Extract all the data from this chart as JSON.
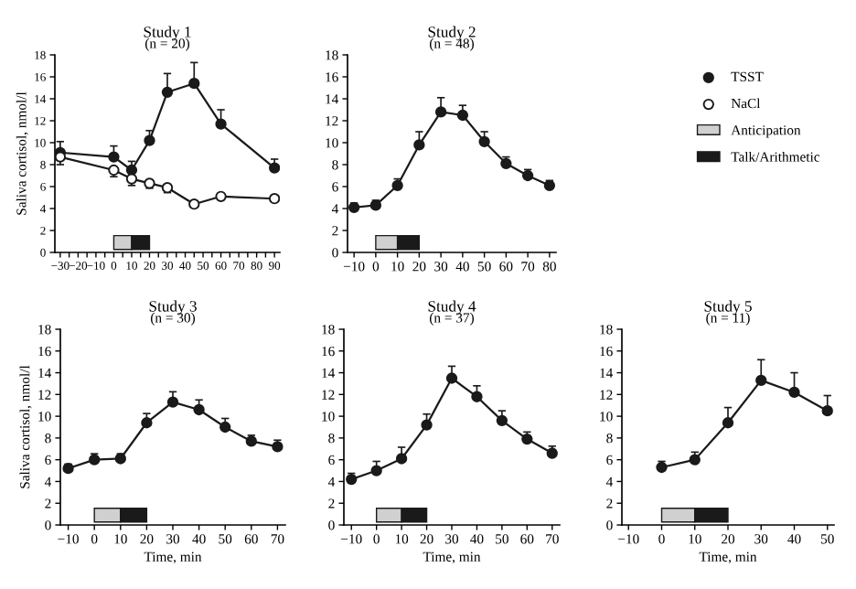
{
  "chart_data": [
    {
      "type": "line",
      "title": "Study 1",
      "subtitle": "(n = 20)",
      "ylabel": "Saliva cortisol, nmol/l",
      "xlim": [
        -33,
        93
      ],
      "ylim": [
        0,
        18
      ],
      "xticks": [
        -30,
        {
          "value": -25,
          "label": null
        },
        -20,
        {
          "value": -15,
          "label": null
        },
        -10,
        {
          "value": -5,
          "label": null
        },
        0,
        {
          "value": 5,
          "label": null
        },
        10,
        {
          "value": 15,
          "label": null
        },
        20,
        {
          "value": 25,
          "label": null
        },
        30,
        {
          "value": 35,
          "label": null
        },
        40,
        {
          "value": 45,
          "label": null
        },
        50,
        {
          "value": 55,
          "label": null
        },
        60,
        {
          "value": 65,
          "label": null
        },
        70,
        {
          "value": 75,
          "label": null
        },
        80,
        {
          "value": 85,
          "label": null
        },
        90
      ],
      "yticks": [
        0,
        2,
        4,
        6,
        8,
        10,
        12,
        14,
        16,
        18
      ],
      "legend": "right",
      "grid": false,
      "series": [
        {
          "name": "TSST",
          "color": "#1a1a1a",
          "marker": "circle",
          "x": [
            -30,
            0,
            10,
            20,
            30,
            45,
            60,
            90
          ],
          "values": [
            9.1,
            8.7,
            7.5,
            10.2,
            14.6,
            15.4,
            11.7,
            7.7
          ],
          "errors": [
            [
              9.1,
              10.1
            ],
            [
              8.7,
              9.7
            ],
            [
              7.5,
              8.3
            ],
            [
              10.2,
              11.1
            ],
            [
              14.6,
              16.3
            ],
            [
              15.4,
              17.3
            ],
            [
              11.7,
              13.0
            ],
            [
              7.7,
              8.5
            ]
          ]
        },
        {
          "name": "NaCl",
          "color": "#ffffff",
          "marker": "circle",
          "x": [
            -30,
            0,
            10,
            20,
            30,
            45,
            60,
            90
          ],
          "values": [
            8.7,
            7.5,
            6.7,
            6.3,
            5.9,
            4.4,
            5.1,
            4.9
          ],
          "errors": [
            [
              8.0,
              8.7
            ],
            [
              6.9,
              7.5
            ],
            [
              6.1,
              6.7
            ],
            [
              5.85,
              6.3
            ],
            [
              5.45,
              5.9
            ],
            [
              4.1,
              4.4
            ],
            [
              4.9,
              5.1
            ],
            [
              4.7,
              4.9
            ]
          ]
        }
      ],
      "bands": [
        {
          "axis": "x",
          "from": 0,
          "to": 10,
          "label": "Anticipation",
          "color": "#d0d0d0"
        },
        {
          "axis": "x",
          "from": 10,
          "to": 20,
          "label": "Talk/Arithmetic",
          "color": "#1a1a1a"
        }
      ]
    },
    {
      "type": "line",
      "title": "Study 2",
      "subtitle": "(n = 48)",
      "xlim": [
        -13,
        83
      ],
      "ylim": [
        0,
        18
      ],
      "xticks": [
        -10,
        0,
        10,
        20,
        30,
        40,
        50,
        60,
        70,
        80
      ],
      "yticks": [
        0,
        2,
        4,
        6,
        8,
        10,
        12,
        14,
        16,
        18
      ],
      "grid": false,
      "series": [
        {
          "color": "#1a1a1a",
          "marker": "circle",
          "x": [
            -10,
            0,
            10,
            20,
            30,
            40,
            50,
            60,
            70,
            80
          ],
          "values": [
            4.1,
            4.3,
            6.1,
            9.8,
            12.8,
            12.5,
            10.1,
            8.1,
            7.0,
            6.1
          ],
          "errors": [
            [
              4.1,
              4.5
            ],
            [
              4.3,
              4.75
            ],
            [
              6.1,
              6.7
            ],
            [
              9.8,
              11.0
            ],
            [
              12.8,
              14.1
            ],
            [
              12.5,
              13.4
            ],
            [
              10.1,
              11.0
            ],
            [
              8.1,
              8.7
            ],
            [
              7.0,
              7.55
            ],
            [
              6.1,
              6.55
            ]
          ]
        }
      ],
      "bands": [
        {
          "axis": "x",
          "from": 0,
          "to": 10,
          "color": "#d0d0d0"
        },
        {
          "axis": "x",
          "from": 10,
          "to": 20,
          "color": "#1a1a1a"
        }
      ]
    },
    {
      "type": "line",
      "title": "Study 3",
      "subtitle": "(n = 30)",
      "xlabel": "Time, min",
      "ylabel": "Saliva cortisol, nmol/l",
      "xlim": [
        -13,
        73
      ],
      "ylim": [
        0,
        18
      ],
      "xticks": [
        -10,
        0,
        10,
        20,
        30,
        40,
        50,
        60,
        70
      ],
      "yticks": [
        0,
        2,
        4,
        6,
        8,
        10,
        12,
        14,
        16,
        18
      ],
      "grid": false,
      "series": [
        {
          "color": "#1a1a1a",
          "marker": "circle",
          "x": [
            -10,
            0,
            10,
            20,
            30,
            40,
            50,
            60,
            70
          ],
          "values": [
            5.2,
            6.0,
            6.1,
            9.4,
            11.3,
            10.6,
            9.0,
            7.7,
            7.2
          ],
          "errors": [
            [
              5.2,
              5.6
            ],
            [
              6.0,
              6.55
            ],
            [
              6.1,
              6.55
            ],
            [
              9.4,
              10.25
            ],
            [
              11.3,
              12.25
            ],
            [
              10.6,
              11.5
            ],
            [
              9.0,
              9.8
            ],
            [
              7.7,
              8.25
            ],
            [
              7.2,
              7.8
            ]
          ]
        }
      ],
      "bands": [
        {
          "axis": "x",
          "from": 0,
          "to": 10,
          "color": "#d0d0d0"
        },
        {
          "axis": "x",
          "from": 10,
          "to": 20,
          "color": "#1a1a1a"
        }
      ]
    },
    {
      "type": "line",
      "title": "Study 4",
      "subtitle": "(n = 37)",
      "xlabel": "Time, min",
      "xlim": [
        -13,
        73
      ],
      "ylim": [
        0,
        18
      ],
      "xticks": [
        -10,
        0,
        10,
        20,
        30,
        40,
        50,
        60,
        70
      ],
      "yticks": [
        0,
        2,
        4,
        6,
        8,
        10,
        12,
        14,
        16,
        18
      ],
      "grid": false,
      "series": [
        {
          "color": "#1a1a1a",
          "marker": "circle",
          "x": [
            -10,
            0,
            10,
            20,
            30,
            40,
            50,
            60,
            70
          ],
          "values": [
            4.2,
            5.0,
            6.1,
            9.2,
            13.5,
            11.8,
            9.6,
            7.9,
            6.6
          ],
          "errors": [
            [
              4.2,
              4.75
            ],
            [
              5.0,
              5.85
            ],
            [
              6.1,
              7.15
            ],
            [
              9.2,
              10.2
            ],
            [
              13.5,
              14.6
            ],
            [
              11.8,
              12.8
            ],
            [
              9.6,
              10.5
            ],
            [
              7.9,
              8.55
            ],
            [
              6.6,
              7.25
            ]
          ]
        }
      ],
      "bands": [
        {
          "axis": "x",
          "from": 0,
          "to": 10,
          "color": "#d0d0d0"
        },
        {
          "axis": "x",
          "from": 10,
          "to": 20,
          "color": "#1a1a1a"
        }
      ]
    },
    {
      "type": "line",
      "title": "Study 5",
      "subtitle": "(n = 11)",
      "xlabel": "Time, min",
      "xlim": [
        -12,
        52
      ],
      "ylim": [
        0,
        18
      ],
      "xticks": [
        -10,
        0,
        10,
        20,
        30,
        40,
        50
      ],
      "yticks": [
        0,
        2,
        4,
        6,
        8,
        10,
        12,
        14,
        16,
        18
      ],
      "grid": false,
      "series": [
        {
          "color": "#1a1a1a",
          "marker": "circle",
          "x": [
            0,
            10,
            20,
            30,
            40,
            50
          ],
          "values": [
            5.3,
            6.0,
            9.4,
            13.3,
            12.2,
            10.5
          ],
          "errors": [
            [
              5.3,
              5.85
            ],
            [
              6.0,
              6.7
            ],
            [
              9.4,
              10.8
            ],
            [
              13.3,
              15.2
            ],
            [
              12.2,
              14.0
            ],
            [
              10.5,
              11.9
            ]
          ]
        }
      ],
      "bands": [
        {
          "axis": "x",
          "from": 0,
          "to": 10,
          "color": "#d0d0d0"
        },
        {
          "axis": "x",
          "from": 10,
          "to": 20,
          "color": "#1a1a1a"
        }
      ]
    }
  ]
}
